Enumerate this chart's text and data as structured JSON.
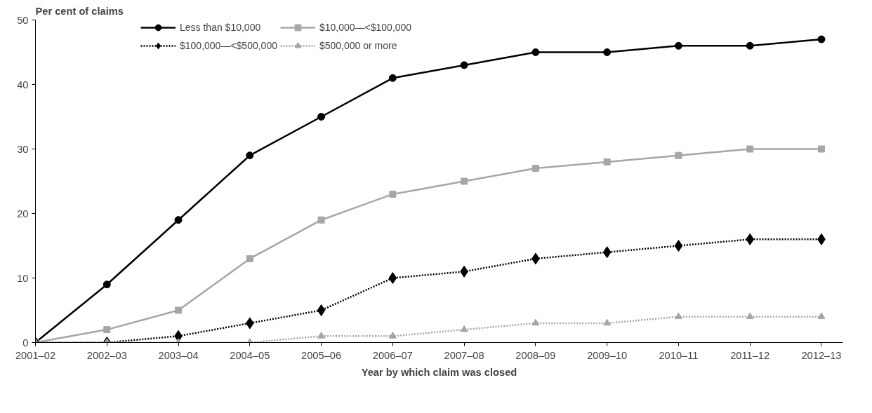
{
  "chart_data": {
    "type": "line",
    "ylabel": "Per cent of claims",
    "xlabel": "Year by which claim was closed",
    "categories": [
      "2001–02",
      "2002–03",
      "2003–04",
      "2004–05",
      "2005–06",
      "2006–07",
      "2007–08",
      "2008–09",
      "2009–10",
      "2010–11",
      "2011–12",
      "2012–13"
    ],
    "ylim": [
      0,
      50
    ],
    "yticks": [
      0,
      10,
      20,
      30,
      40,
      50
    ],
    "grid": false,
    "legend": "top",
    "series": [
      {
        "name": "Less than $10,000",
        "color": "#000000",
        "marker": "circle",
        "line_style": "solid",
        "values": [
          0,
          9,
          19,
          29,
          35,
          41,
          43,
          45,
          45,
          46,
          46,
          47
        ]
      },
      {
        "name": "$10,000—<$100,000",
        "color": "#a6a6a6",
        "marker": "square",
        "line_style": "solid",
        "values": [
          0,
          2,
          5,
          13,
          19,
          23,
          25,
          27,
          28,
          29,
          30,
          30
        ]
      },
      {
        "name": "$100,000—<$500,000",
        "color": "#000000",
        "marker": "diamond",
        "line_style": "dotted",
        "values": [
          0,
          0,
          1,
          3,
          5,
          10,
          11,
          13,
          14,
          15,
          16,
          16
        ]
      },
      {
        "name": "$500,000 or more",
        "color": "#a6a6a6",
        "marker": "triangle",
        "line_style": "dotted",
        "values": [
          0,
          0,
          0,
          0,
          1,
          1,
          2,
          3,
          3,
          4,
          4,
          4
        ]
      }
    ]
  }
}
